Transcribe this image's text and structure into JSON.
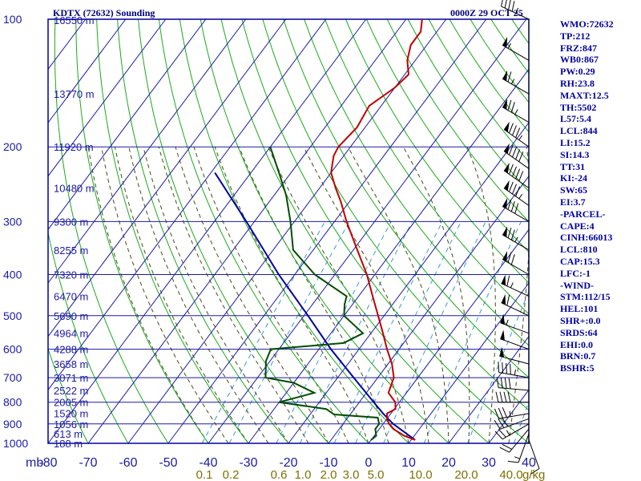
{
  "header": {
    "title": "KDTX (72632) Sounding",
    "datetime": "0000Z 29 OCT 25"
  },
  "indices": [
    "WMO:72632",
    "TP:212",
    "FRZ:847",
    "WB0:867",
    "PW:0.29",
    "RH:23.8",
    "MAXT:12.5",
    "TH:5502",
    "L57:5.4",
    "LCL:844",
    "LI:15.2",
    "SI:14.3",
    "TT:31",
    "KI:-24",
    "SW:65",
    "EI:3.7",
    "-PARCEL-",
    "CAPE:4",
    "CINH:66013",
    "LCL:810",
    "CAP:15.3",
    "LFC:-1",
    "-WIND-",
    "STM:112/15",
    "HEL:101",
    "SHR+:0.0",
    "SRDS:64",
    "EHI:0.0",
    "BRN:0.7",
    "BSHR:5"
  ],
  "colors": {
    "frame": "#0000a0",
    "isobar": "#1a1aa8",
    "isotherm": "#1a1aa8",
    "dry_adiabat": "#1aaa1a",
    "moist_adiabat": "#4a4a1a",
    "mixing_ratio": "#3a9ad9",
    "temperature": "#c00000",
    "dewpoint": "#004d00",
    "parcel": "#0000a0",
    "wind_barbs": "#000000"
  },
  "chart_data": {
    "type": "skew-T log-P sounding",
    "pressure_unit_label": "mb",
    "pressure_range_mb": [
      100,
      1000
    ],
    "temperature_range_c": [
      -80,
      40
    ],
    "pressure_ticks": [
      100,
      200,
      300,
      400,
      500,
      600,
      700,
      800,
      900,
      1000
    ],
    "temperature_ticks": [
      -80,
      -70,
      -60,
      -50,
      -40,
      -30,
      -20,
      -10,
      0,
      10,
      20,
      30,
      40
    ],
    "temperature_tick_labels": [
      "-80",
      "-70",
      "-60",
      "-50",
      "-40",
      "-30",
      "-20",
      "-10",
      "0",
      "10",
      "20",
      "30",
      "40"
    ],
    "mixing_ratio_labels": [
      "0.1",
      "0.2",
      "0.6",
      "1.0",
      "2.0",
      "3.0",
      "5.0",
      "10.0",
      "20.0",
      "40.0"
    ],
    "mixing_ratio_unit": "g/kg",
    "mixing_ratio_values": [
      0.1,
      0.2,
      0.6,
      1.0,
      2.0,
      3.0,
      5.0,
      10.0,
      20.0,
      40.0
    ],
    "height_labels": [
      {
        "p": 100,
        "label": "16550 m"
      },
      {
        "p": 150,
        "label": "13770 m"
      },
      {
        "p": 200,
        "label": "11920 m"
      },
      {
        "p": 250,
        "label": "10480 m"
      },
      {
        "p": 300,
        "label": "9300 m"
      },
      {
        "p": 350,
        "label": "8255 m"
      },
      {
        "p": 400,
        "label": "7320 m"
      },
      {
        "p": 450,
        "label": "6470 m"
      },
      {
        "p": 500,
        "label": "5690 m"
      },
      {
        "p": 550,
        "label": "4964 m"
      },
      {
        "p": 600,
        "label": "4288 m"
      },
      {
        "p": 650,
        "label": "3658 m"
      },
      {
        "p": 700,
        "label": "3071 m"
      },
      {
        "p": 750,
        "label": "2522 m"
      },
      {
        "p": 800,
        "label": "2005 m"
      },
      {
        "p": 850,
        "label": "1520 m"
      },
      {
        "p": 900,
        "label": "1056 m"
      },
      {
        "p": 950,
        "label": "613 m"
      },
      {
        "p": 1000,
        "label": "188 m"
      }
    ],
    "temperature_profile": [
      {
        "p": 982,
        "t": 11.0
      },
      {
        "p": 960,
        "t": 7.5
      },
      {
        "p": 925,
        "t": 3.5
      },
      {
        "p": 900,
        "t": 1.5
      },
      {
        "p": 875,
        "t": 0.0
      },
      {
        "p": 850,
        "t": -1.0
      },
      {
        "p": 830,
        "t": 0.3
      },
      {
        "p": 800,
        "t": -1.0
      },
      {
        "p": 760,
        "t": -4.5
      },
      {
        "p": 700,
        "t": -6.0
      },
      {
        "p": 650,
        "t": -9.0
      },
      {
        "p": 600,
        "t": -13.0
      },
      {
        "p": 550,
        "t": -17.0
      },
      {
        "p": 500,
        "t": -21.5
      },
      {
        "p": 450,
        "t": -26.5
      },
      {
        "p": 400,
        "t": -32.0
      },
      {
        "p": 350,
        "t": -39.0
      },
      {
        "p": 300,
        "t": -47.0
      },
      {
        "p": 270,
        "t": -52.0
      },
      {
        "p": 250,
        "t": -56.0
      },
      {
        "p": 230,
        "t": -60.0
      },
      {
        "p": 210,
        "t": -62.5
      },
      {
        "p": 200,
        "t": -63.0
      },
      {
        "p": 180,
        "t": -62.0
      },
      {
        "p": 160,
        "t": -63.0
      },
      {
        "p": 145,
        "t": -60.0
      },
      {
        "p": 135,
        "t": -59.0
      },
      {
        "p": 125,
        "t": -62.0
      },
      {
        "p": 115,
        "t": -64.0
      },
      {
        "p": 107,
        "t": -64.0
      },
      {
        "p": 100,
        "t": -66.0
      }
    ],
    "dewpoint_profile": [
      {
        "p": 982,
        "t": 0.0
      },
      {
        "p": 960,
        "t": 0.5
      },
      {
        "p": 925,
        "t": -1.0
      },
      {
        "p": 900,
        "t": -1.0
      },
      {
        "p": 870,
        "t": -2.5
      },
      {
        "p": 855,
        "t": -14.0
      },
      {
        "p": 830,
        "t": -17.0
      },
      {
        "p": 800,
        "t": -30.0
      },
      {
        "p": 760,
        "t": -23.0
      },
      {
        "p": 720,
        "t": -30.0
      },
      {
        "p": 700,
        "t": -38.0
      },
      {
        "p": 640,
        "t": -41.0
      },
      {
        "p": 600,
        "t": -42.0
      },
      {
        "p": 580,
        "t": -25.0
      },
      {
        "p": 550,
        "t": -22.0
      },
      {
        "p": 500,
        "t": -30.0
      },
      {
        "p": 470,
        "t": -32.0
      },
      {
        "p": 450,
        "t": -33.0
      },
      {
        "p": 400,
        "t": -45.0
      },
      {
        "p": 350,
        "t": -55.0
      },
      {
        "p": 300,
        "t": -61.0
      },
      {
        "p": 260,
        "t": -67.0
      },
      {
        "p": 230,
        "t": -73.0
      },
      {
        "p": 200,
        "t": -80.0
      }
    ],
    "parcel_profile": [
      {
        "p": 982,
        "t": 11.0
      },
      {
        "p": 900,
        "t": 2.5
      },
      {
        "p": 850,
        "t": -2.0
      },
      {
        "p": 810,
        "t": -5.5
      },
      {
        "p": 700,
        "t": -16.0
      },
      {
        "p": 600,
        "t": -27.0
      },
      {
        "p": 500,
        "t": -39.0
      },
      {
        "p": 400,
        "t": -54.0
      },
      {
        "p": 300,
        "t": -72.0
      },
      {
        "p": 230,
        "t": -89.0
      }
    ],
    "wind_profile": [
      {
        "p": 982,
        "dir": 160,
        "spd": 10
      },
      {
        "p": 950,
        "dir": 200,
        "spd": 15
      },
      {
        "p": 925,
        "dir": 220,
        "spd": 20
      },
      {
        "p": 900,
        "dir": 240,
        "spd": 25
      },
      {
        "p": 875,
        "dir": 250,
        "spd": 30
      },
      {
        "p": 850,
        "dir": 260,
        "spd": 35
      },
      {
        "p": 800,
        "dir": 270,
        "spd": 40
      },
      {
        "p": 750,
        "dir": 275,
        "spd": 40
      },
      {
        "p": 700,
        "dir": 280,
        "spd": 45
      },
      {
        "p": 650,
        "dir": 285,
        "spd": 50
      },
      {
        "p": 600,
        "dir": 290,
        "spd": 50
      },
      {
        "p": 550,
        "dir": 290,
        "spd": 55
      },
      {
        "p": 500,
        "dir": 295,
        "spd": 60
      },
      {
        "p": 450,
        "dir": 295,
        "spd": 65
      },
      {
        "p": 400,
        "dir": 300,
        "spd": 70
      },
      {
        "p": 350,
        "dir": 300,
        "spd": 75
      },
      {
        "p": 300,
        "dir": 300,
        "spd": 80
      },
      {
        "p": 275,
        "dir": 305,
        "spd": 85
      },
      {
        "p": 250,
        "dir": 305,
        "spd": 90
      },
      {
        "p": 225,
        "dir": 305,
        "spd": 90
      },
      {
        "p": 200,
        "dir": 305,
        "spd": 85
      },
      {
        "p": 175,
        "dir": 300,
        "spd": 75
      },
      {
        "p": 150,
        "dir": 300,
        "spd": 65
      },
      {
        "p": 125,
        "dir": 300,
        "spd": 55
      },
      {
        "p": 100,
        "dir": 295,
        "spd": 45
      }
    ],
    "grid": true
  }
}
